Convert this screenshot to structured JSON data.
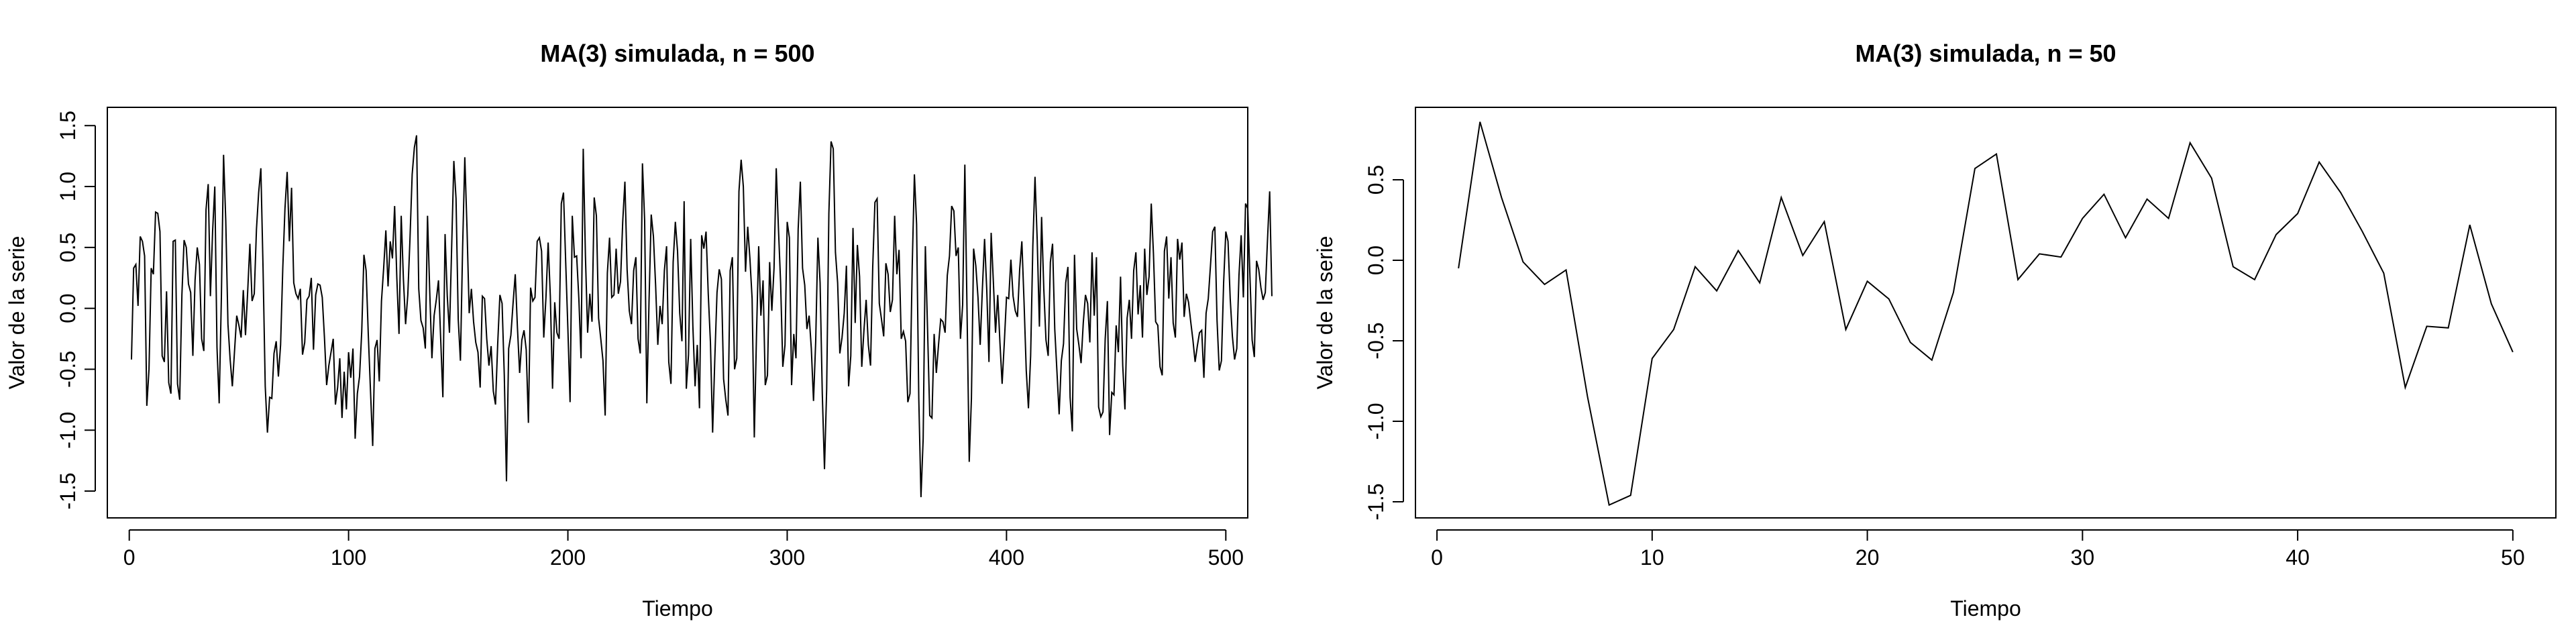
{
  "chart_data": [
    {
      "type": "line",
      "title": "MA(3) simulada, n = 500",
      "xlabel": "Tiempo",
      "ylabel": "Valor de la serie",
      "xlim": [
        -10,
        510
      ],
      "ylim": [
        -1.72,
        1.65
      ],
      "xticks": [
        0,
        100,
        200,
        300,
        400,
        500
      ],
      "yticks": [
        -1.5,
        -1.0,
        -0.5,
        0.0,
        0.5,
        1.0,
        1.5
      ],
      "xtick_labels": [
        "0",
        "100",
        "200",
        "300",
        "400",
        "500"
      ],
      "ytick_labels": [
        "-1.5",
        "-1.0",
        "-0.5",
        "0.0",
        "0.5",
        "1.0",
        "1.5"
      ],
      "series": [
        {
          "x_start": 1,
          "values": [
            -0.42,
            0.33,
            0.36,
            0.02,
            0.59,
            0.55,
            0.43,
            -0.8,
            -0.5,
            0.33,
            0.28,
            0.79,
            0.78,
            0.63,
            -0.39,
            -0.44,
            0.14,
            -0.61,
            -0.7,
            0.55,
            0.56,
            -0.62,
            -0.75,
            0.11,
            0.56,
            0.5,
            0.2,
            0.13,
            -0.39,
            0.23,
            0.5,
            0.36,
            -0.25,
            -0.35,
            0.81,
            1.02,
            0.1,
            0.63,
            1.0,
            -0.32,
            -0.78,
            0.09,
            1.26,
            0.72,
            -0.13,
            -0.42,
            -0.64,
            -0.35,
            -0.06,
            -0.14,
            -0.24,
            0.15,
            -0.22,
            0.14,
            0.53,
            0.06,
            0.12,
            0.65,
            0.95,
            1.15,
            0.33,
            -0.64,
            -1.02,
            -0.73,
            -0.74,
            -0.37,
            -0.27,
            -0.56,
            -0.3,
            0.33,
            0.82,
            1.12,
            0.55,
            0.99,
            0.21,
            0.12,
            0.08,
            0.16,
            -0.38,
            -0.28,
            0.07,
            0.1,
            0.25,
            -0.34,
            0.11,
            0.2,
            0.19,
            0.09,
            -0.24,
            -0.63,
            -0.47,
            -0.36,
            -0.25,
            -0.79,
            -0.65,
            -0.41,
            -0.9,
            -0.52,
            -0.83,
            -0.36,
            -0.57,
            -0.33,
            -1.07,
            -0.7,
            -0.56,
            -0.19,
            0.44,
            0.31,
            -0.22,
            -0.68,
            -1.13,
            -0.33,
            -0.26,
            -0.6,
            0.06,
            0.33,
            0.64,
            0.18,
            0.55,
            0.41,
            0.84,
            0.25,
            -0.21,
            0.76,
            0.24,
            -0.13,
            0.11,
            0.57,
            1.1,
            1.32,
            1.42,
            0.16,
            -0.1,
            -0.16,
            -0.33,
            0.76,
            0.14,
            -0.41,
            -0.06,
            0.07,
            0.23,
            -0.25,
            -0.73,
            0.61,
            0.1,
            -0.2,
            0.5,
            1.21,
            0.9,
            -0.09,
            -0.43,
            0.5,
            1.24,
            0.66,
            -0.04,
            0.16,
            -0.11,
            -0.28,
            -0.36,
            -0.65,
            0.1,
            0.08,
            -0.25,
            -0.47,
            -0.31,
            -0.68,
            -0.79,
            -0.29,
            0.11,
            0.04,
            -0.55,
            -1.42,
            -0.33,
            -0.22,
            0.04,
            0.28,
            -0.16,
            -0.53,
            -0.26,
            -0.18,
            -0.34,
            -0.94,
            0.17,
            0.06,
            0.09,
            0.55,
            0.58,
            0.47,
            -0.24,
            0.09,
            0.54,
            0.1,
            -0.66,
            0.05,
            -0.2,
            -0.25,
            0.86,
            0.95,
            0.38,
            -0.17,
            -0.77,
            0.76,
            0.42,
            0.43,
            0.08,
            -0.41,
            1.31,
            0.43,
            -0.2,
            0.12,
            -0.11,
            0.91,
            0.76,
            -0.08,
            -0.25,
            -0.43,
            -0.88,
            0.29,
            0.58,
            0.09,
            0.11,
            0.49,
            0.12,
            0.22,
            0.71,
            1.04,
            0.32,
            -0.02,
            -0.13,
            0.31,
            0.42,
            -0.25,
            -0.37,
            1.19,
            0.72,
            -0.78,
            0.06,
            0.77,
            0.59,
            0.19,
            -0.3,
            0.02,
            -0.13,
            0.31,
            0.51,
            -0.44,
            -0.62,
            0.38,
            0.71,
            0.47,
            -0.04,
            -0.27,
            0.88,
            -0.66,
            -0.38,
            0.57,
            -0.15,
            -0.64,
            -0.3,
            -0.82,
            0.6,
            0.49,
            0.63,
            0.12,
            -0.28,
            -1.02,
            -0.41,
            0.13,
            0.32,
            0.24,
            -0.58,
            -0.75,
            -0.88,
            0.31,
            0.42,
            -0.5,
            -0.41,
            0.96,
            1.22,
            1.0,
            0.3,
            0.67,
            0.41,
            0.08,
            -1.06,
            -0.22,
            0.51,
            -0.06,
            0.23,
            -0.63,
            -0.55,
            0.38,
            -0.02,
            0.33,
            1.15,
            0.66,
            0.21,
            -0.48,
            -0.3,
            0.71,
            0.58,
            -0.63,
            -0.21,
            -0.41,
            0.65,
            1.04,
            0.33,
            0.19,
            -0.17,
            -0.06,
            -0.33,
            -0.76,
            -0.27,
            0.58,
            0.21,
            -0.7,
            -1.32,
            -0.66,
            0.78,
            1.37,
            1.31,
            0.46,
            0.21,
            -0.37,
            -0.24,
            -0.04,
            0.35,
            -0.64,
            -0.39,
            0.66,
            -0.12,
            0.52,
            0.26,
            -0.48,
            -0.18,
            0.07,
            -0.3,
            -0.47,
            0.34,
            0.87,
            0.9,
            0.04,
            -0.09,
            -0.23,
            0.37,
            0.28,
            -0.03,
            0.07,
            0.76,
            0.28,
            0.48,
            -0.25,
            -0.19,
            -0.27,
            -0.77,
            -0.7,
            0.34,
            1.1,
            0.69,
            -0.74,
            -1.55,
            -1.07,
            0.51,
            -0.17,
            -0.88,
            -0.9,
            -0.21,
            -0.53,
            -0.3,
            -0.09,
            -0.11,
            -0.2,
            0.27,
            0.43,
            0.84,
            0.8,
            0.43,
            0.5,
            -0.25,
            0.03,
            1.18,
            -0.02,
            -1.26,
            -0.74,
            0.49,
            0.35,
            0.09,
            -0.3,
            0.16,
            0.57,
            0.15,
            -0.44,
            0.62,
            0.22,
            -0.2,
            0.11,
            -0.28,
            -0.62,
            -0.28,
            0.09,
            0.08,
            0.4,
            0.1,
            -0.02,
            -0.07,
            0.32,
            0.55,
            0.05,
            -0.51,
            -0.82,
            -0.39,
            0.51,
            1.08,
            0.56,
            -0.15,
            0.75,
            0.16,
            -0.26,
            -0.39,
            0.38,
            0.53,
            -0.17,
            -0.52,
            -0.87,
            -0.43,
            -0.29,
            0.21,
            0.34,
            -0.73,
            -1.01,
            0.44,
            -0.17,
            -0.3,
            -0.45,
            -0.12,
            0.11,
            0.04,
            -0.28,
            0.46,
            -0.06,
            0.42,
            -0.81,
            -0.89,
            -0.85,
            -0.25,
            0.06,
            -1.04,
            -0.69,
            -0.71,
            -0.14,
            -0.36,
            0.26,
            -0.47,
            -0.83,
            -0.08,
            0.07,
            -0.25,
            0.31,
            0.46,
            -0.05,
            0.19,
            -0.24,
            0.49,
            0.11,
            0.26,
            0.86,
            0.45,
            -0.11,
            -0.14,
            -0.48,
            -0.55,
            0.47,
            0.59,
            0.08,
            0.42,
            -0.12,
            -0.24,
            0.57,
            0.4,
            0.54,
            -0.07,
            0.12,
            0.05,
            -0.11,
            -0.26,
            -0.44,
            -0.31,
            -0.2,
            -0.18,
            -0.57,
            -0.04,
            0.08,
            0.35,
            0.63,
            0.67,
            -0.1,
            -0.51,
            -0.43,
            0.21,
            0.63,
            0.55,
            0.08,
            -0.23,
            -0.42,
            -0.33,
            0.27,
            0.6,
            0.09,
            0.86,
            0.82,
            0.26,
            -0.26,
            -0.4,
            0.39,
            0.32,
            0.17,
            0.07,
            0.13,
            0.56,
            0.96,
            0.1
          ]
        }
      ]
    },
    {
      "type": "line",
      "title": "MA(3) simulada, n = 50",
      "xlabel": "Tiempo",
      "ylabel": "Valor de la serie",
      "xlim": [
        -1,
        52
      ],
      "ylim": [
        -1.6,
        0.95
      ],
      "xticks": [
        0,
        10,
        20,
        30,
        40,
        50
      ],
      "yticks": [
        -1.5,
        -1.0,
        -0.5,
        0.0,
        0.5
      ],
      "xtick_labels": [
        "0",
        "10",
        "20",
        "30",
        "40",
        "50"
      ],
      "ytick_labels": [
        "-1.5",
        "-1.0",
        "-0.5",
        "0.0",
        "0.5"
      ],
      "series": [
        {
          "x_start": 1,
          "values": [
            -0.05,
            0.86,
            0.39,
            -0.01,
            -0.15,
            -0.06,
            -0.85,
            -1.52,
            -1.46,
            -0.61,
            -0.43,
            -0.04,
            -0.19,
            0.06,
            -0.14,
            0.39,
            0.03,
            0.24,
            -0.43,
            -0.13,
            -0.24,
            -0.51,
            -0.62,
            -0.2,
            0.57,
            0.66,
            -0.12,
            0.04,
            0.02,
            0.26,
            0.41,
            0.14,
            0.38,
            0.26,
            0.73,
            0.51,
            -0.04,
            -0.12,
            0.16,
            0.29,
            0.61,
            0.42,
            0.18,
            -0.08,
            -0.79,
            -0.41,
            -0.42,
            0.22,
            -0.27,
            -0.57
          ]
        }
      ]
    }
  ]
}
